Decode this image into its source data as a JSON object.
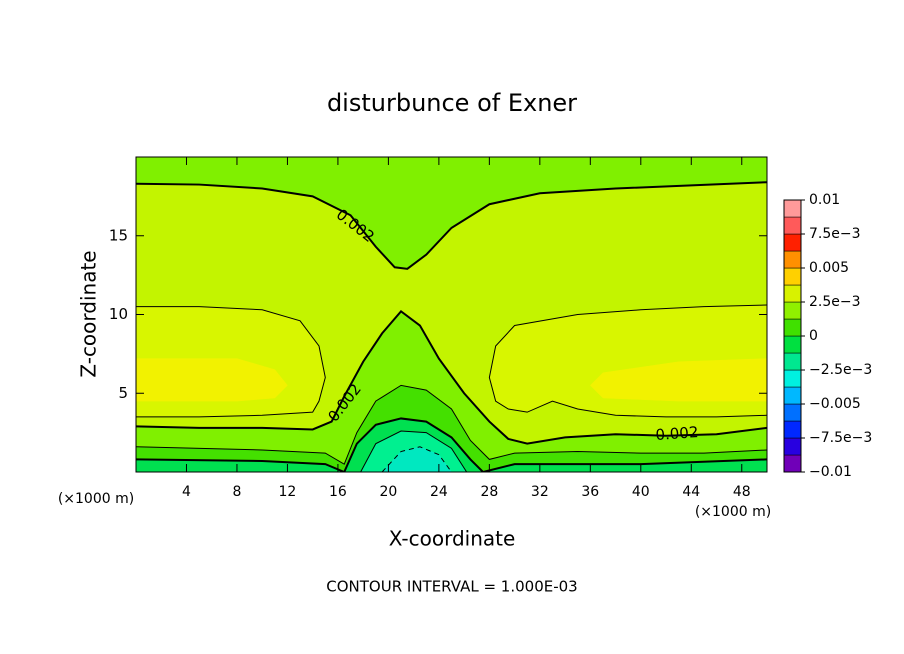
{
  "chart_data": {
    "type": "contour",
    "title": "disturbunce of Exner",
    "xlabel": "X-coordinate",
    "ylabel": "Z-coordinate",
    "xunit": "(×1000 m)",
    "yunit": "(×1000 m)",
    "footer": "CONTOUR INTERVAL = 1.000E-03",
    "xlim": [
      0,
      50
    ],
    "ylim": [
      0,
      20
    ],
    "xticks": [
      4,
      8,
      12,
      16,
      20,
      24,
      28,
      32,
      36,
      40,
      44,
      48
    ],
    "yticks": [
      5,
      10,
      15
    ],
    "regions": [
      {
        "color": "#c3f400",
        "x": [
          0,
          50,
          50,
          0
        ],
        "y": [
          0,
          0,
          20,
          20
        ]
      },
      {
        "color": "#80f000",
        "x": [
          0,
          5,
          10,
          14,
          17,
          19,
          20.5,
          21.5,
          23,
          25,
          28,
          32,
          38,
          44,
          50,
          50,
          0
        ],
        "y": [
          18.3,
          18.25,
          18.0,
          17.5,
          16.3,
          14.3,
          13.0,
          12.9,
          13.8,
          15.5,
          17.0,
          17.7,
          18.0,
          18.2,
          18.4,
          20,
          20
        ]
      },
      {
        "color": "#80f000",
        "x": [
          0,
          5,
          10,
          14,
          15.5,
          16.5,
          18,
          19.5,
          21,
          22.5,
          24,
          26,
          28,
          29.5,
          31,
          34,
          38,
          42,
          46,
          50,
          50,
          0
        ],
        "y": [
          2.9,
          2.8,
          2.8,
          2.7,
          3.2,
          4.8,
          7,
          8.8,
          10.2,
          9.3,
          7.2,
          5.0,
          3.2,
          2.1,
          1.8,
          2.2,
          2.4,
          2.3,
          2.4,
          2.8,
          0,
          0
        ]
      },
      {
        "color": "#d8f600",
        "x": [
          0,
          5,
          10,
          13,
          14.5,
          15,
          14.5,
          14,
          10,
          5,
          0
        ],
        "y": [
          10.5,
          10.5,
          10.3,
          9.6,
          8,
          6,
          4.5,
          3.8,
          3.6,
          3.5,
          3.5
        ]
      },
      {
        "color": "#d8f600",
        "x": [
          50,
          45,
          40,
          35,
          30,
          28.5,
          28,
          28.5,
          29.5,
          31,
          33,
          35,
          38,
          42,
          46,
          50
        ],
        "y": [
          10.6,
          10.5,
          10.3,
          10.0,
          9.3,
          8,
          6,
          4.5,
          4.0,
          3.8,
          4.5,
          4.0,
          3.6,
          3.5,
          3.5,
          3.6
        ]
      },
      {
        "color": "#f2f200",
        "x": [
          0,
          8,
          11,
          12,
          11,
          8,
          0
        ],
        "y": [
          7.2,
          7.2,
          6.5,
          5.5,
          4.7,
          4.5,
          4.5
        ]
      },
      {
        "color": "#f2f200",
        "x": [
          50,
          43,
          37,
          36,
          37,
          43,
          50
        ],
        "y": [
          7.2,
          7,
          6.3,
          5.5,
          4.7,
          4.5,
          4.5
        ]
      },
      {
        "color": "#44e000",
        "x": [
          0,
          10,
          15,
          16.5,
          17.5,
          19,
          21,
          23,
          25,
          26.5,
          28,
          30,
          35,
          40,
          45,
          50,
          50,
          0
        ],
        "y": [
          1.6,
          1.4,
          1.2,
          0.5,
          2.5,
          4.5,
          5.5,
          5.2,
          4,
          2,
          0.8,
          1.2,
          1.3,
          1.2,
          1.2,
          1.4,
          0,
          0
        ]
      },
      {
        "color": "#00e050",
        "x": [
          0,
          10,
          15,
          16.5,
          17.5,
          19,
          21,
          23,
          25,
          26.5,
          27.5,
          30,
          40,
          50,
          50,
          0
        ],
        "y": [
          0.8,
          0.7,
          0.5,
          0,
          1.8,
          3,
          3.4,
          3.2,
          2.2,
          0.8,
          0,
          0.5,
          0.5,
          0.8,
          0,
          0
        ]
      },
      {
        "color": "#00f090",
        "x": [
          17.8,
          19,
          21,
          23,
          25,
          26.2
        ],
        "y": [
          0,
          1.8,
          2.6,
          2.5,
          1.5,
          0
        ]
      },
      {
        "color": "#00e8c0",
        "x": [
          19.5,
          21,
          22.5,
          24,
          25
        ],
        "y": [
          0,
          1.3,
          1.6,
          1.1,
          0
        ]
      }
    ],
    "contours": [
      {
        "thick": true,
        "labels": [
          "0.002"
        ],
        "x": [
          0,
          5,
          10,
          14,
          17,
          19,
          20.5,
          21.5,
          23,
          25,
          28,
          32,
          38,
          44,
          50
        ],
        "y": [
          18.3,
          18.25,
          18.0,
          17.5,
          16.3,
          14.3,
          13.0,
          12.9,
          13.8,
          15.5,
          17.0,
          17.7,
          18.0,
          18.2,
          18.4
        ]
      },
      {
        "thick": false,
        "x": [
          0,
          5,
          10,
          13,
          14.5,
          15,
          14.5,
          14,
          10,
          5,
          0
        ],
        "y": [
          10.5,
          10.5,
          10.3,
          9.6,
          8,
          6,
          4.5,
          3.8,
          3.6,
          3.5,
          3.5
        ]
      },
      {
        "thick": false,
        "x": [
          50,
          45,
          40,
          35,
          30,
          28.5,
          28,
          28.5,
          29.5,
          31,
          33,
          35,
          38,
          42,
          46,
          50
        ],
        "y": [
          10.6,
          10.5,
          10.3,
          10.0,
          9.3,
          8,
          6,
          4.5,
          4.0,
          3.8,
          4.5,
          4.0,
          3.6,
          3.5,
          3.5,
          3.6
        ]
      },
      {
        "thick": true,
        "labels": [
          "0.002",
          "0.002"
        ],
        "x": [
          0,
          5,
          10,
          14,
          15.5,
          16.5,
          18,
          19.5,
          21,
          22.5,
          24,
          26,
          28,
          29.5,
          31,
          34,
          38,
          42,
          46,
          50
        ],
        "y": [
          2.9,
          2.8,
          2.8,
          2.7,
          3.2,
          4.8,
          7,
          8.8,
          10.2,
          9.3,
          7.2,
          5.0,
          3.2,
          2.1,
          1.8,
          2.2,
          2.4,
          2.3,
          2.4,
          2.8
        ]
      },
      {
        "thick": false,
        "x": [
          0,
          10,
          15,
          16.5,
          17.5,
          19,
          21,
          23,
          25,
          26.5,
          28,
          30,
          35,
          40,
          45,
          50
        ],
        "y": [
          1.6,
          1.4,
          1.2,
          0.5,
          2.5,
          4.5,
          5.5,
          5.2,
          4,
          2,
          0.8,
          1.2,
          1.3,
          1.2,
          1.2,
          1.4
        ]
      },
      {
        "thick": true,
        "x": [
          0,
          10,
          15,
          16.5,
          17.5,
          19,
          21,
          23,
          25,
          26.5,
          27.5,
          30,
          40,
          50
        ],
        "y": [
          0.8,
          0.7,
          0.5,
          0,
          1.8,
          3,
          3.4,
          3.2,
          2.2,
          0.8,
          0,
          0.5,
          0.5,
          0.8
        ]
      },
      {
        "thick": false,
        "x": [
          17.8,
          19,
          21,
          23,
          25,
          26.2
        ],
        "y": [
          0,
          1.8,
          2.6,
          2.5,
          1.5,
          0
        ]
      },
      {
        "thick": false,
        "dashed": true,
        "x": [
          19.5,
          21,
          22.5,
          24,
          25
        ],
        "y": [
          0,
          1.3,
          1.6,
          1.1,
          0
        ]
      }
    ],
    "colorbar": {
      "levels": [
        -0.01,
        -0.00875,
        -0.0075,
        -0.00625,
        -0.005,
        -0.00375,
        -0.0025,
        -0.00125,
        0,
        0.00125,
        0.0025,
        0.00375,
        0.005,
        0.00625,
        0.0075,
        0.00875,
        0.01
      ],
      "colors": [
        "#7000b8",
        "#2800e0",
        "#0028ff",
        "#0070ff",
        "#00b8ff",
        "#00f0e0",
        "#00e890",
        "#00e040",
        "#40e000",
        "#90f000",
        "#d8f200",
        "#ffd000",
        "#ff9000",
        "#ff2000",
        "#ff5a5a",
        "#ff9a9a"
      ],
      "ticks": [
        {
          "value": 0.01,
          "label": "0.01"
        },
        {
          "value": 0.0075,
          "label": "7.5e−3"
        },
        {
          "value": 0.005,
          "label": "0.005"
        },
        {
          "value": 0.0025,
          "label": "2.5e−3"
        },
        0,
        {
          "value": -0.0025,
          "label": "−2.5e−3"
        },
        {
          "value": -0.005,
          "label": "−0.005"
        },
        {
          "value": -0.0075,
          "label": "−7.5e−3"
        },
        {
          "value": -0.01,
          "label": "−0.01"
        }
      ]
    }
  }
}
